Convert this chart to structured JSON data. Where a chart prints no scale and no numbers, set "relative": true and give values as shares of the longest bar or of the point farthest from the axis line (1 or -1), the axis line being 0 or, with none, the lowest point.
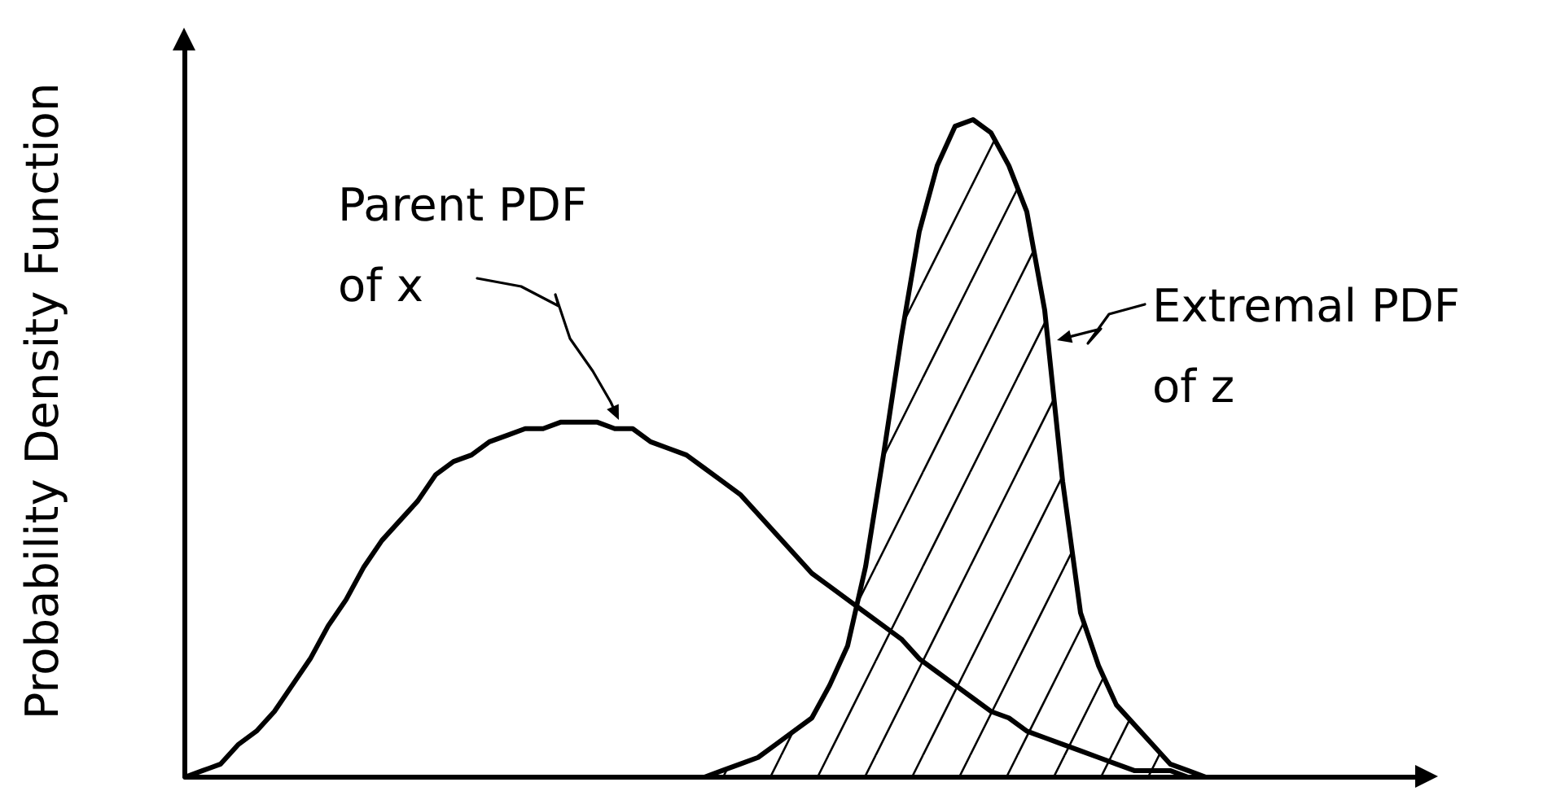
{
  "chart_data": {
    "type": "line",
    "ylabel": "Probability Density Function",
    "relative": true,
    "categories": [
      null,
      null,
      null,
      null,
      null,
      null,
      null,
      null,
      null,
      null,
      null,
      null,
      null,
      null,
      null,
      null,
      null,
      null,
      null,
      null,
      null,
      null,
      null,
      null,
      null,
      null,
      null,
      null,
      null,
      null,
      null,
      null,
      null,
      null,
      null,
      null,
      null,
      null,
      null,
      null,
      null,
      null,
      null,
      null,
      null,
      null,
      null,
      null,
      null,
      null,
      null,
      null,
      null,
      null,
      null,
      null,
      null,
      null,
      null,
      null,
      null,
      null,
      null,
      null,
      null,
      null,
      null,
      null,
      null,
      null,
      null
    ],
    "series": [
      {
        "name": "Parent PDF of x",
        "color": "#000000",
        "values": [
          0,
          0.01,
          0.02,
          0.05,
          0.07,
          0.1,
          0.14,
          0.18,
          0.23,
          0.27,
          0.32,
          0.36,
          0.39,
          0.42,
          0.46,
          0.48,
          0.49,
          0.51,
          0.52,
          0.53,
          0.53,
          0.54,
          0.54,
          0.54,
          0.53,
          0.53,
          0.51,
          0.5,
          0.49,
          0.47,
          0.45,
          0.43,
          0.4,
          0.37,
          0.34,
          0.31,
          0.29,
          0.27,
          0.25,
          0.23,
          0.21,
          0.18,
          0.16,
          0.14,
          0.12,
          0.1,
          0.09,
          0.07,
          0.06,
          0.05,
          0.04,
          0.03,
          0.02,
          0.01,
          0.01,
          0.01,
          0,
          null,
          null,
          null,
          null,
          null,
          null,
          null,
          null,
          null,
          null,
          null,
          null,
          null,
          null
        ]
      },
      {
        "name": "Extremal PDF of z",
        "type": "area",
        "color": "#000000",
        "values": [
          null,
          null,
          null,
          null,
          null,
          null,
          null,
          null,
          null,
          null,
          null,
          null,
          null,
          null,
          null,
          null,
          null,
          null,
          null,
          null,
          null,
          null,
          null,
          null,
          null,
          null,
          null,
          null,
          null,
          0,
          0.01,
          0.02,
          0.03,
          0.05,
          0.07,
          0.09,
          0.14,
          0.2,
          0.32,
          0.49,
          0.67,
          0.83,
          0.93,
          0.99,
          1,
          0.98,
          0.93,
          0.86,
          0.71,
          0.45,
          0.25,
          0.17,
          0.11,
          0.08,
          0.05,
          0.02,
          0.01,
          0,
          null,
          null,
          null,
          null,
          null,
          null,
          null,
          null,
          null,
          null,
          null,
          null,
          null
        ]
      }
    ]
  }
}
